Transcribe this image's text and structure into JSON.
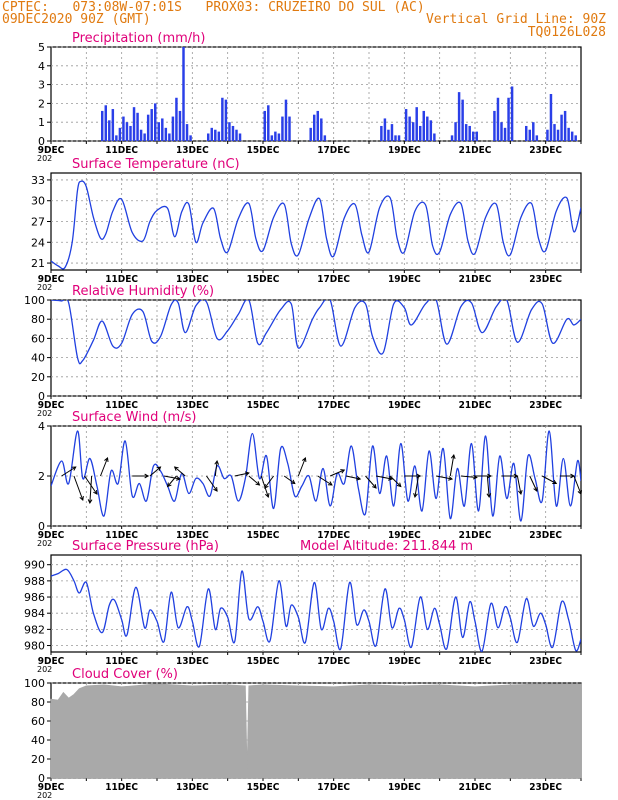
{
  "header": {
    "line1": "CPTEC:   073:08W-07:01S   PROX03: CRUZEIRO DO SUL (AC)",
    "line2_left": "09DEC2020 90Z (GMT)",
    "line2_right": "Vertical Grid Line: 90Z",
    "line3_right": "TQ0126L028"
  },
  "colors": {
    "header": "#e07a10",
    "title": "#e0007a",
    "line": "#2040e0",
    "bar": "#2a3fe8",
    "cloud": "#a9a9a9",
    "grid": "#999999",
    "wind": "#000000"
  },
  "x_labels": [
    "9DEC",
    "11DEC",
    "13DEC",
    "15DEC",
    "17DEC",
    "19DEC",
    "21DEC",
    "23DEC"
  ],
  "x_label_sub": "202",
  "chart_data": [
    {
      "type": "bar",
      "title": "Precipitation (mm/h)",
      "ylim": [
        0,
        5
      ],
      "yticks": [
        "0",
        "1",
        "2",
        "3",
        "4",
        "5"
      ],
      "xlim_days": [
        9.0,
        24.0
      ],
      "grid": true,
      "x": [
        10.45,
        10.55,
        10.65,
        10.75,
        10.85,
        10.95,
        11.05,
        11.15,
        11.25,
        11.35,
        11.45,
        11.55,
        11.65,
        11.75,
        11.85,
        11.95,
        12.05,
        12.15,
        12.25,
        12.35,
        12.45,
        12.55,
        12.65,
        12.75,
        12.85,
        12.95,
        13.45,
        13.55,
        13.65,
        13.75,
        13.85,
        13.95,
        14.05,
        14.15,
        14.25,
        14.35,
        15.05,
        15.15,
        15.25,
        15.35,
        15.45,
        15.55,
        15.65,
        15.75,
        16.35,
        16.45,
        16.55,
        16.65,
        16.75,
        18.35,
        18.45,
        18.55,
        18.65,
        18.75,
        18.85,
        19.05,
        19.15,
        19.25,
        19.35,
        19.45,
        19.55,
        19.65,
        19.75,
        19.85,
        20.35,
        20.45,
        20.55,
        20.65,
        20.75,
        20.85,
        20.95,
        21.05,
        21.55,
        21.65,
        21.75,
        21.85,
        21.95,
        22.05,
        22.45,
        22.55,
        22.65,
        22.75,
        23.05,
        23.15,
        23.25,
        23.35,
        23.45,
        23.55,
        23.65,
        23.75,
        23.85
      ],
      "values": [
        1.6,
        1.9,
        1.1,
        1.7,
        0.3,
        0.7,
        1.3,
        1.0,
        0.8,
        1.8,
        1.5,
        0.6,
        0.4,
        1.4,
        1.7,
        2.0,
        1.0,
        1.2,
        0.7,
        0.4,
        1.3,
        2.3,
        1.6,
        5.0,
        0.9,
        0.3,
        0.4,
        0.7,
        0.6,
        0.5,
        2.3,
        2.2,
        1.0,
        0.8,
        0.6,
        0.4,
        1.6,
        1.9,
        0.3,
        0.5,
        0.4,
        1.3,
        2.2,
        1.3,
        0.7,
        1.4,
        1.6,
        1.2,
        0.3,
        0.8,
        1.2,
        0.6,
        0.9,
        0.3,
        0.3,
        1.7,
        1.3,
        1.0,
        1.8,
        0.8,
        1.6,
        1.3,
        1.1,
        0.4,
        0.3,
        1.0,
        2.6,
        2.2,
        0.9,
        0.8,
        0.5,
        0.5,
        1.6,
        2.3,
        1.0,
        0.7,
        2.3,
        2.9,
        0.8,
        0.6,
        1.0,
        0.3,
        0.6,
        2.5,
        0.9,
        0.6,
        1.4,
        1.6,
        0.7,
        0.5,
        0.3
      ]
    },
    {
      "type": "line",
      "title": "Surface Temperature (nC)",
      "ylim": [
        20,
        34
      ],
      "yticks": [
        "21",
        "24",
        "27",
        "30",
        "33"
      ],
      "tick_values": [
        21,
        24,
        27,
        30,
        33
      ],
      "xlim_days": [
        9.0,
        24.0
      ],
      "grid": true,
      "x": [
        9.0,
        9.2,
        9.4,
        9.6,
        9.75,
        9.85,
        10.0,
        10.2,
        10.4,
        10.55,
        10.75,
        11.0,
        11.3,
        11.6,
        11.8,
        12.0,
        12.3,
        12.5,
        12.7,
        12.9,
        13.1,
        13.3,
        13.6,
        13.8,
        14.0,
        14.3,
        14.6,
        14.8,
        15.0,
        15.3,
        15.6,
        15.8,
        16.0,
        16.3,
        16.6,
        16.8,
        17.0,
        17.3,
        17.6,
        17.8,
        18.0,
        18.3,
        18.6,
        18.8,
        19.0,
        19.3,
        19.6,
        19.8,
        20.0,
        20.3,
        20.6,
        20.8,
        21.0,
        21.3,
        21.6,
        21.8,
        22.0,
        22.3,
        22.6,
        22.8,
        23.0,
        23.3,
        23.6,
        23.8,
        24.0
      ],
      "values": [
        21.3,
        20.6,
        20.4,
        24.0,
        31.5,
        32.8,
        32.0,
        27.6,
        24.6,
        25.2,
        28.5,
        30.2,
        25.4,
        24.2,
        27.0,
        28.6,
        28.9,
        24.8,
        28.4,
        29.5,
        24.0,
        26.8,
        28.9,
        24.5,
        22.6,
        27.4,
        29.6,
        24.5,
        22.8,
        27.6,
        29.5,
        23.8,
        22.2,
        27.4,
        30.3,
        24.5,
        22.0,
        27.5,
        29.5,
        25.0,
        22.6,
        29.0,
        30.4,
        24.5,
        22.6,
        28.5,
        29.4,
        23.5,
        22.6,
        28.0,
        29.6,
        24.2,
        22.4,
        27.6,
        29.5,
        24.0,
        22.2,
        27.6,
        29.6,
        24.5,
        22.8,
        28.5,
        30.4,
        25.5,
        29.0
      ]
    },
    {
      "type": "line",
      "title": "Relative Humidity (%)",
      "ylim": [
        0,
        100
      ],
      "yticks": [
        "0",
        "20",
        "40",
        "60",
        "80",
        "100"
      ],
      "tick_values": [
        0,
        20,
        40,
        60,
        80,
        100
      ],
      "xlim_days": [
        9.0,
        24.0
      ],
      "grid": true,
      "x": [
        9.0,
        9.3,
        9.5,
        9.75,
        9.9,
        10.2,
        10.45,
        10.75,
        11.0,
        11.3,
        11.6,
        11.85,
        12.1,
        12.4,
        12.6,
        12.8,
        13.1,
        13.4,
        13.7,
        14.0,
        14.3,
        14.6,
        14.85,
        15.1,
        15.5,
        15.8,
        16.0,
        16.4,
        16.6,
        16.9,
        17.2,
        17.6,
        17.9,
        18.1,
        18.4,
        18.7,
        19.0,
        19.2,
        19.6,
        19.9,
        20.2,
        20.6,
        20.9,
        21.2,
        21.6,
        21.9,
        22.2,
        22.6,
        22.9,
        23.2,
        23.6,
        23.8,
        24.0
      ],
      "values": [
        100,
        99,
        97,
        40,
        37,
        58,
        78,
        52,
        55,
        85,
        88,
        57,
        62,
        95,
        97,
        66,
        94,
        98,
        60,
        68,
        85,
        100,
        55,
        66,
        90,
        96,
        50,
        80,
        92,
        100,
        52,
        92,
        96,
        62,
        45,
        96,
        92,
        74,
        96,
        100,
        54,
        93,
        97,
        66,
        93,
        100,
        56,
        90,
        96,
        55,
        80,
        74,
        80
      ]
    },
    {
      "type": "line",
      "title": "Surface Wind (m/s)",
      "ylim": [
        0,
        4
      ],
      "yticks": [
        "0",
        "2",
        "4"
      ],
      "tick_values": [
        0,
        2,
        4
      ],
      "xlim_days": [
        9.0,
        24.0
      ],
      "grid": true,
      "x": [
        9.0,
        9.3,
        9.5,
        9.75,
        9.9,
        10.1,
        10.3,
        10.5,
        10.7,
        10.9,
        11.1,
        11.3,
        11.5,
        11.7,
        11.9,
        12.1,
        12.3,
        12.5,
        12.7,
        12.9,
        13.1,
        13.3,
        13.5,
        13.7,
        13.9,
        14.1,
        14.3,
        14.5,
        14.7,
        14.9,
        15.1,
        15.3,
        15.5,
        15.7,
        15.9,
        16.1,
        16.3,
        16.5,
        16.7,
        16.9,
        17.1,
        17.3,
        17.5,
        17.7,
        17.9,
        18.1,
        18.3,
        18.5,
        18.7,
        18.9,
        19.1,
        19.3,
        19.5,
        19.7,
        19.9,
        20.1,
        20.3,
        20.5,
        20.7,
        20.9,
        21.1,
        21.3,
        21.5,
        21.7,
        21.9,
        22.1,
        22.3,
        22.5,
        22.7,
        22.9,
        23.1,
        23.3,
        23.5,
        23.7,
        23.9,
        24.0
      ],
      "values": [
        1.6,
        2.6,
        1.7,
        3.8,
        1.9,
        2.7,
        1.6,
        0.4,
        2.2,
        1.7,
        3.4,
        1.2,
        1.7,
        1.0,
        2.4,
        2.2,
        1.6,
        1.0,
        2.1,
        1.3,
        1.9,
        1.7,
        1.2,
        2.4,
        1.9,
        2.0,
        1.0,
        1.9,
        3.7,
        1.9,
        2.8,
        0.7,
        3.1,
        2.5,
        1.2,
        1.6,
        2.0,
        1.0,
        2.3,
        0.8,
        2.1,
        1.7,
        3.2,
        1.5,
        0.5,
        3.2,
        1.3,
        2.8,
        0.8,
        3.3,
        1.0,
        2.4,
        0.6,
        3.0,
        1.1,
        3.1,
        0.3,
        2.3,
        0.8,
        3.3,
        0.6,
        3.6,
        0.4,
        2.8,
        1.1,
        2.5,
        0.2,
        2.8,
        1.9,
        1.0,
        3.8,
        0.8,
        2.7,
        0.8,
        2.6,
        1.8
      ],
      "arrows": [
        {
          "x": 9.3,
          "dx": 0.4,
          "dy": -0.3
        },
        {
          "x": 9.65,
          "dx": 0.25,
          "dy": 0.8
        },
        {
          "x": 9.95,
          "dx": 0.35,
          "dy": 0.6
        },
        {
          "x": 10.15,
          "dx": -0.05,
          "dy": 0.9
        },
        {
          "x": 10.4,
          "dx": 0.2,
          "dy": -0.6
        },
        {
          "x": 11.3,
          "dx": 0.45,
          "dy": 0.0
        },
        {
          "x": 11.8,
          "dx": 0.3,
          "dy": -0.3
        },
        {
          "x": 12.2,
          "dx": 0.45,
          "dy": 0.1
        },
        {
          "x": 12.55,
          "dx": -0.25,
          "dy": 0.35
        },
        {
          "x": 12.8,
          "dx": -0.3,
          "dy": -0.3
        },
        {
          "x": 13.4,
          "dx": 0.3,
          "dy": 0.5
        },
        {
          "x": 13.65,
          "dx": 0.05,
          "dy": -0.5
        },
        {
          "x": 14.2,
          "dx": 0.4,
          "dy": -0.1
        },
        {
          "x": 14.6,
          "dx": 0.3,
          "dy": 0.3
        },
        {
          "x": 14.95,
          "dx": 0.2,
          "dy": 0.7
        },
        {
          "x": 15.3,
          "dx": -0.25,
          "dy": 0.4
        },
        {
          "x": 15.6,
          "dx": 0.3,
          "dy": 0.25
        },
        {
          "x": 16.0,
          "dx": 0.2,
          "dy": -0.6
        },
        {
          "x": 16.55,
          "dx": 0.4,
          "dy": 0.3
        },
        {
          "x": 16.9,
          "dx": 0.4,
          "dy": -0.2
        },
        {
          "x": 17.35,
          "dx": 0.4,
          "dy": 0.1
        },
        {
          "x": 17.9,
          "dx": 0.3,
          "dy": 0.4
        },
        {
          "x": 18.2,
          "dx": 0.45,
          "dy": 0.1
        },
        {
          "x": 18.6,
          "dx": 0.3,
          "dy": 0.35
        },
        {
          "x": 19.0,
          "dx": 0.45,
          "dy": 0.0
        },
        {
          "x": 19.4,
          "dx": -0.1,
          "dy": 0.7
        },
        {
          "x": 19.9,
          "dx": 0.45,
          "dy": 0.1
        },
        {
          "x": 20.3,
          "dx": 0.1,
          "dy": -0.7
        },
        {
          "x": 20.6,
          "dx": 0.45,
          "dy": 0.05
        },
        {
          "x": 21.0,
          "dx": 0.45,
          "dy": 0.0
        },
        {
          "x": 21.35,
          "dx": 0.05,
          "dy": 0.7
        },
        {
          "x": 21.75,
          "dx": 0.45,
          "dy": 0.0
        },
        {
          "x": 22.2,
          "dx": 0.1,
          "dy": 0.6
        },
        {
          "x": 22.55,
          "dx": 0.2,
          "dy": 0.5
        },
        {
          "x": 22.9,
          "dx": 0.4,
          "dy": 0.25
        },
        {
          "x": 23.4,
          "dx": 0.4,
          "dy": 0.0
        },
        {
          "x": 23.8,
          "dx": 0.2,
          "dy": 0.6
        }
      ]
    },
    {
      "type": "line",
      "title": "Surface Pressure (hPa)",
      "annotation": "Model Altitude: 211.844 m",
      "ylim": [
        979.2,
        991.2
      ],
      "yticks": [
        "980",
        "982",
        "984",
        "986",
        "988",
        "990"
      ],
      "tick_values": [
        980,
        982,
        984,
        986,
        988,
        990
      ],
      "xlim_days": [
        9.0,
        24.0
      ],
      "grid": true,
      "x": [
        9.0,
        9.2,
        9.45,
        9.65,
        9.8,
        10.0,
        10.2,
        10.45,
        10.65,
        10.8,
        11.0,
        11.15,
        11.4,
        11.65,
        11.8,
        12.0,
        12.2,
        12.4,
        12.6,
        12.85,
        13.0,
        13.2,
        13.45,
        13.65,
        13.8,
        14.0,
        14.2,
        14.4,
        14.6,
        14.85,
        15.0,
        15.2,
        15.45,
        15.65,
        15.8,
        16.0,
        16.2,
        16.45,
        16.65,
        16.85,
        17.0,
        17.2,
        17.45,
        17.65,
        17.85,
        18.0,
        18.2,
        18.45,
        18.65,
        18.85,
        19.0,
        19.2,
        19.45,
        19.65,
        19.85,
        20.0,
        20.2,
        20.45,
        20.65,
        20.85,
        21.0,
        21.2,
        21.45,
        21.65,
        21.85,
        22.0,
        22.2,
        22.45,
        22.65,
        22.85,
        23.0,
        23.2,
        23.45,
        23.65,
        23.85,
        24.0
      ],
      "values": [
        988.6,
        988.9,
        989.4,
        988.0,
        986.5,
        987.8,
        984.0,
        981.6,
        985.0,
        985.6,
        983.2,
        981.3,
        987.2,
        982.2,
        984.4,
        983.0,
        980.5,
        986.6,
        982.2,
        984.8,
        983.0,
        979.9,
        987.0,
        982.0,
        984.6,
        983.5,
        980.5,
        989.2,
        983.3,
        984.8,
        983.0,
        980.6,
        988.0,
        982.4,
        985.0,
        983.5,
        980.4,
        987.8,
        982.0,
        984.6,
        983.0,
        979.6,
        987.8,
        982.6,
        984.4,
        983.0,
        980.0,
        987.0,
        982.2,
        984.6,
        983.2,
        979.8,
        986.0,
        982.0,
        984.6,
        982.6,
        979.6,
        986.0,
        981.0,
        985.4,
        983.0,
        979.3,
        985.2,
        982.2,
        984.8,
        983.4,
        980.4,
        985.8,
        982.4,
        984.0,
        982.6,
        979.8,
        985.4,
        983.2,
        979.4,
        980.8
      ]
    },
    {
      "type": "area",
      "title": "Cloud Cover (%)",
      "ylim": [
        0,
        100
      ],
      "yticks": [
        "0",
        "20",
        "40",
        "60",
        "80",
        "100"
      ],
      "tick_values": [
        0,
        20,
        40,
        60,
        80,
        100
      ],
      "xlim_days": [
        9.0,
        24.0
      ],
      "grid": true,
      "x": [
        9.0,
        9.2,
        9.35,
        9.5,
        9.65,
        9.8,
        10.0,
        10.5,
        11.0,
        12.0,
        13.0,
        14.0,
        14.5,
        14.55,
        14.6,
        15.0,
        16.0,
        17.0,
        18.0,
        19.0,
        20.0,
        21.0,
        22.0,
        23.0,
        24.0
      ],
      "values": [
        83,
        82,
        90,
        84,
        88,
        94,
        97,
        98,
        96,
        99,
        97,
        98,
        97,
        8,
        97,
        98,
        97,
        96,
        98,
        97,
        98,
        96,
        98,
        99,
        99
      ]
    }
  ]
}
